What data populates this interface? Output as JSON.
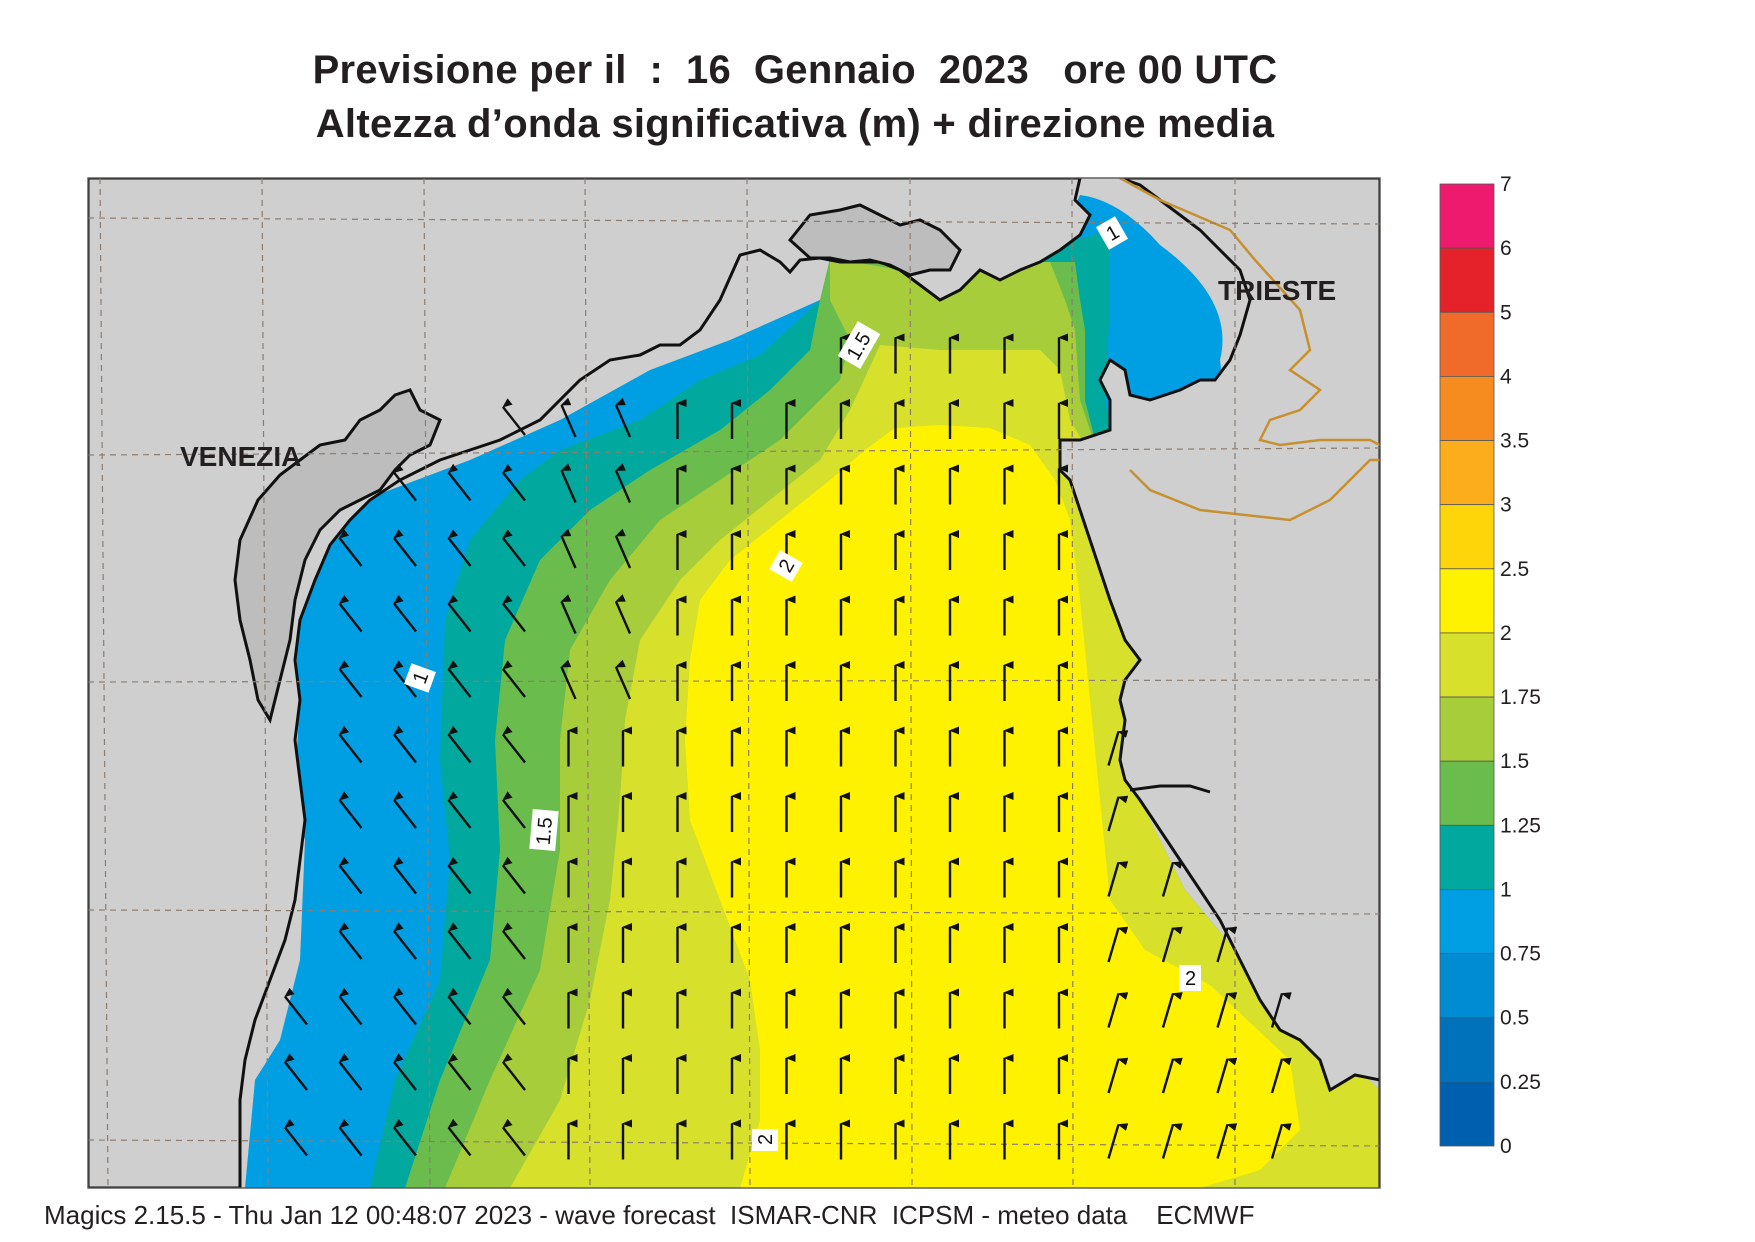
{
  "header": {
    "title_line1": "Previsione per il  :  16  Gennaio  2023   ore 00 UTC",
    "title_line2": "Altezza d’onda significativa (m) + direzione media"
  },
  "places": {
    "venezia": "VENEZIA",
    "trieste": "TRIESTE"
  },
  "contour_labels": {
    "c1": "1",
    "c2": "1",
    "c3": "1.5",
    "c4": "1.5",
    "c5": "2",
    "c6": "2",
    "c7": "2"
  },
  "legend": {
    "labels": [
      "7",
      "6",
      "5",
      "4",
      "3.5",
      "3",
      "2.5",
      "2",
      "1.75",
      "1.5",
      "1.25",
      "1",
      "0.75",
      "0.5",
      "0.25",
      "0"
    ],
    "colors": [
      "#ee1a6e",
      "#e52229",
      "#f06a2a",
      "#f68b1f",
      "#fbad1c",
      "#fdd509",
      "#fff200",
      "#d7e02a",
      "#a8cd3a",
      "#6abd4c",
      "#00a89d",
      "#009fe3",
      "#008cd2",
      "#0072bc",
      "#0060b0"
    ]
  },
  "footer": {
    "text": "Magics 2.15.5 - Thu Jan 12 00:48:07 2023 - wave forecast  ISMAR-CNR  ICPSM - meteo data    ECMWF"
  }
}
